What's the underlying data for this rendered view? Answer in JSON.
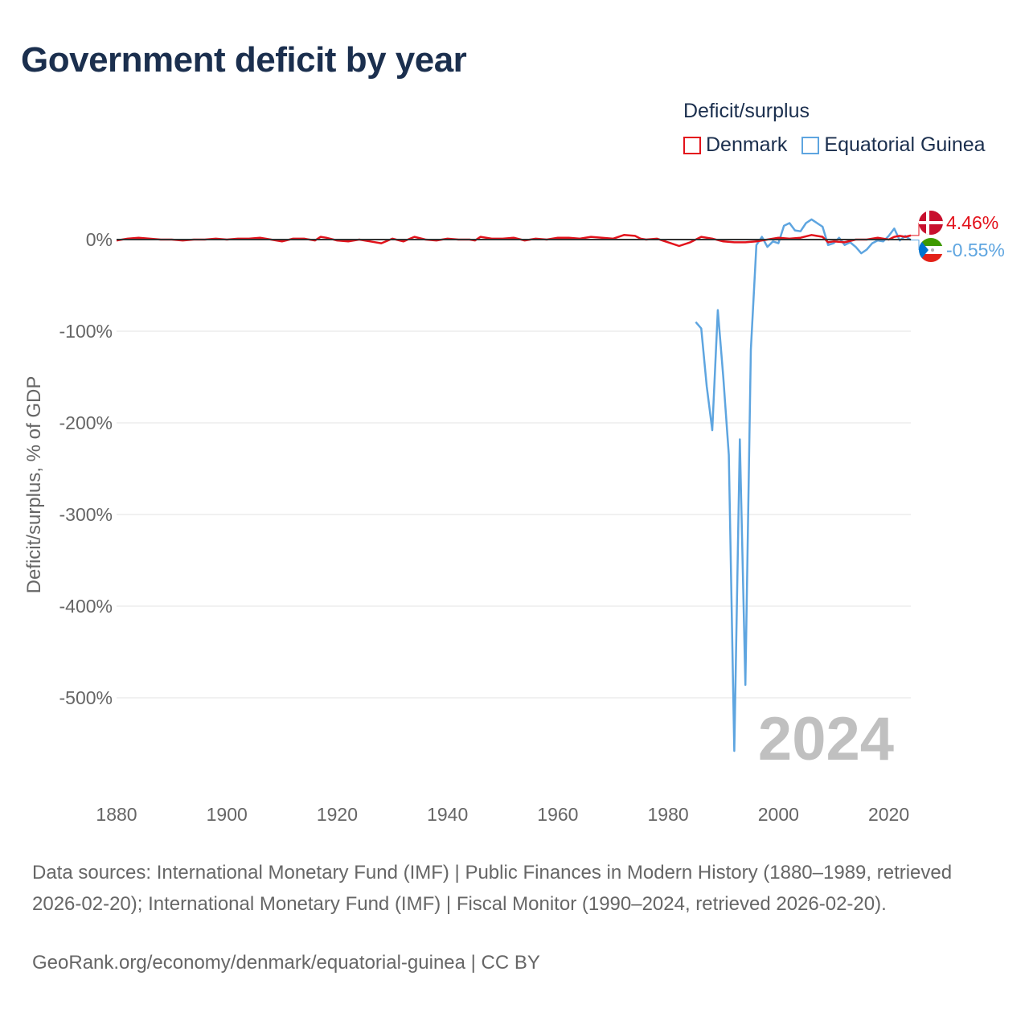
{
  "header": {
    "title": "Government deficit by year"
  },
  "legend": {
    "title": "Deficit/surplus",
    "entries": [
      {
        "name": "Denmark",
        "color": "#e3121b"
      },
      {
        "name": "Equatorial Guinea",
        "color": "#5ea5e0"
      }
    ]
  },
  "footer": {
    "sources": "Data sources: International Monetary Fund (IMF) | Public Finances in Modern History (1880–1989, retrieved 2026-02-20); International Monetary Fund (IMF) | Fiscal Monitor (1990–2024, retrieved 2026-02-20).",
    "credit": "GeoRank.org/economy/denmark/equatorial-guinea | CC BY"
  },
  "chart_data": {
    "type": "line",
    "title": "Government deficit by year",
    "ylabel": "Deficit/surplus, % of GDP",
    "xlabel": "",
    "year_watermark": "2024",
    "xlim": [
      1880,
      2024
    ],
    "ylim": [
      -590,
      40
    ],
    "x_ticks": [
      1880,
      1900,
      1920,
      1940,
      1960,
      1980,
      2000,
      2020
    ],
    "y_ticks": [
      0,
      -100,
      -200,
      -300,
      -400,
      -500
    ],
    "y_tick_labels": [
      "0%",
      "-100%",
      "-200%",
      "-300%",
      "-400%",
      "-500%"
    ],
    "grid": true,
    "series": [
      {
        "name": "Denmark",
        "color": "#e3121b",
        "end_label": "4.46%",
        "x": [
          1880,
          1882,
          1884,
          1886,
          1888,
          1890,
          1892,
          1894,
          1896,
          1898,
          1900,
          1902,
          1904,
          1906,
          1908,
          1910,
          1912,
          1914,
          1916,
          1917,
          1918,
          1920,
          1922,
          1924,
          1926,
          1928,
          1930,
          1932,
          1934,
          1936,
          1938,
          1940,
          1942,
          1944,
          1945,
          1946,
          1948,
          1950,
          1952,
          1954,
          1956,
          1958,
          1960,
          1962,
          1964,
          1966,
          1968,
          1970,
          1972,
          1974,
          1975,
          1976,
          1978,
          1980,
          1982,
          1984,
          1986,
          1988,
          1990,
          1992,
          1994,
          1996,
          1998,
          2000,
          2002,
          2004,
          2006,
          2008,
          2009,
          2010,
          2012,
          2014,
          2016,
          2018,
          2020,
          2021,
          2022,
          2023,
          2024
        ],
        "values": [
          -1,
          1,
          2,
          1,
          0,
          0,
          -1,
          0,
          0,
          1,
          0,
          1,
          1,
          2,
          0,
          -2,
          1,
          1,
          -1,
          3,
          2,
          -1,
          -2,
          0,
          -2,
          -4,
          1,
          -2,
          3,
          0,
          -1,
          1,
          0,
          0,
          -1,
          3,
          1,
          1,
          2,
          -1,
          1,
          0,
          2,
          2,
          1,
          3,
          2,
          1,
          5,
          4,
          1,
          0,
          1,
          -3,
          -7,
          -3,
          3,
          1,
          -2,
          -3,
          -3,
          -2,
          0,
          2,
          1,
          2,
          5,
          3,
          -3,
          -2,
          -3,
          0,
          0,
          2,
          0,
          3,
          4,
          3,
          4.46
        ]
      },
      {
        "name": "Equatorial Guinea",
        "color": "#5ea5e0",
        "end_label": "-0.55%",
        "x": [
          1985,
          1986,
          1987,
          1988,
          1989,
          1990,
          1991,
          1992,
          1993,
          1994,
          1995,
          1996,
          1997,
          1998,
          1999,
          2000,
          2001,
          2002,
          2003,
          2004,
          2005,
          2006,
          2007,
          2008,
          2009,
          2010,
          2011,
          2012,
          2013,
          2014,
          2015,
          2016,
          2017,
          2018,
          2019,
          2020,
          2021,
          2022,
          2023,
          2024
        ],
        "values": [
          -90,
          -97,
          -160,
          -208,
          -77,
          -150,
          -235,
          -558,
          -218,
          -486,
          -120,
          -6,
          3,
          -8,
          -2,
          -4,
          15,
          18,
          10,
          9,
          18,
          22,
          18,
          14,
          -6,
          -4,
          2,
          -6,
          -3,
          -8,
          -15,
          -11,
          -4,
          -1,
          -2,
          4,
          12,
          -1,
          4,
          -0.55
        ]
      }
    ]
  }
}
